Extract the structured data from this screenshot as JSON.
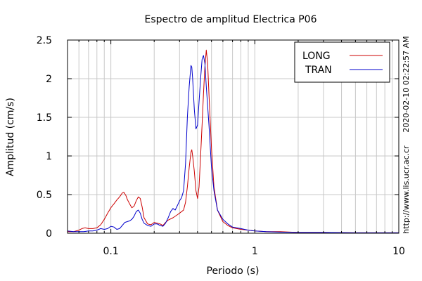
{
  "chart_data": {
    "type": "line",
    "title": "Espectro de amplitud Electrica P06",
    "xlabel": "Periodo (s)",
    "ylabel": "Amplitud (cm/s)",
    "x_scale": "log",
    "xlim": [
      0.05,
      10
    ],
    "ylim": [
      0,
      2.5
    ],
    "x_ticks": [
      {
        "value": 0.1,
        "label": "0.1"
      },
      {
        "value": 1,
        "label": "1"
      },
      {
        "value": 10,
        "label": "10"
      }
    ],
    "y_ticks": [
      {
        "value": 0,
        "label": "0"
      },
      {
        "value": 0.5,
        "label": "0.5"
      },
      {
        "value": 1,
        "label": "1"
      },
      {
        "value": 1.5,
        "label": "1.5"
      },
      {
        "value": 2,
        "label": "2"
      },
      {
        "value": 2.5,
        "label": "2.5"
      }
    ],
    "grid": true,
    "legend_position": "top-right",
    "side_labels": {
      "timestamp": "2020-02-10 02:22:57 AM",
      "url": "http://www.lis.ucr.ac.cr"
    },
    "series": [
      {
        "name": "LONG",
        "color": "#cc0000",
        "points": [
          [
            0.05,
            0.02
          ],
          [
            0.055,
            0.02
          ],
          [
            0.06,
            0.04
          ],
          [
            0.063,
            0.06
          ],
          [
            0.066,
            0.07
          ],
          [
            0.07,
            0.06
          ],
          [
            0.075,
            0.06
          ],
          [
            0.08,
            0.07
          ],
          [
            0.085,
            0.11
          ],
          [
            0.09,
            0.18
          ],
          [
            0.095,
            0.26
          ],
          [
            0.1,
            0.33
          ],
          [
            0.105,
            0.38
          ],
          [
            0.11,
            0.43
          ],
          [
            0.115,
            0.47
          ],
          [
            0.12,
            0.52
          ],
          [
            0.123,
            0.53
          ],
          [
            0.127,
            0.49
          ],
          [
            0.13,
            0.44
          ],
          [
            0.135,
            0.38
          ],
          [
            0.14,
            0.33
          ],
          [
            0.145,
            0.35
          ],
          [
            0.15,
            0.42
          ],
          [
            0.155,
            0.47
          ],
          [
            0.16,
            0.45
          ],
          [
            0.165,
            0.34
          ],
          [
            0.17,
            0.2
          ],
          [
            0.18,
            0.12
          ],
          [
            0.19,
            0.11
          ],
          [
            0.2,
            0.14
          ],
          [
            0.21,
            0.13
          ],
          [
            0.22,
            0.12
          ],
          [
            0.23,
            0.1
          ],
          [
            0.24,
            0.14
          ],
          [
            0.25,
            0.17
          ],
          [
            0.27,
            0.2
          ],
          [
            0.29,
            0.24
          ],
          [
            0.31,
            0.28
          ],
          [
            0.32,
            0.3
          ],
          [
            0.33,
            0.4
          ],
          [
            0.34,
            0.6
          ],
          [
            0.35,
            0.85
          ],
          [
            0.36,
            1.05
          ],
          [
            0.365,
            1.08
          ],
          [
            0.37,
            1.0
          ],
          [
            0.38,
            0.8
          ],
          [
            0.39,
            0.55
          ],
          [
            0.4,
            0.45
          ],
          [
            0.41,
            0.6
          ],
          [
            0.42,
            1.0
          ],
          [
            0.43,
            1.4
          ],
          [
            0.44,
            1.8
          ],
          [
            0.45,
            2.15
          ],
          [
            0.46,
            2.37
          ],
          [
            0.47,
            2.2
          ],
          [
            0.48,
            1.8
          ],
          [
            0.5,
            1.1
          ],
          [
            0.52,
            0.6
          ],
          [
            0.55,
            0.3
          ],
          [
            0.6,
            0.15
          ],
          [
            0.65,
            0.1
          ],
          [
            0.7,
            0.07
          ],
          [
            0.8,
            0.05
          ],
          [
            0.9,
            0.04
          ],
          [
            1.0,
            0.03
          ],
          [
            1.2,
            0.02
          ],
          [
            1.5,
            0.02
          ],
          [
            2,
            0.01
          ],
          [
            3,
            0.01
          ],
          [
            5,
            0.005
          ],
          [
            10,
            0.005
          ]
        ]
      },
      {
        "name": "TRAN",
        "color": "#0000cc",
        "points": [
          [
            0.05,
            0.03
          ],
          [
            0.055,
            0.02
          ],
          [
            0.06,
            0.02
          ],
          [
            0.065,
            0.02
          ],
          [
            0.07,
            0.03
          ],
          [
            0.075,
            0.03
          ],
          [
            0.08,
            0.04
          ],
          [
            0.085,
            0.06
          ],
          [
            0.09,
            0.05
          ],
          [
            0.095,
            0.06
          ],
          [
            0.1,
            0.09
          ],
          [
            0.105,
            0.08
          ],
          [
            0.11,
            0.05
          ],
          [
            0.115,
            0.06
          ],
          [
            0.12,
            0.1
          ],
          [
            0.125,
            0.14
          ],
          [
            0.13,
            0.15
          ],
          [
            0.135,
            0.16
          ],
          [
            0.14,
            0.18
          ],
          [
            0.145,
            0.22
          ],
          [
            0.15,
            0.28
          ],
          [
            0.155,
            0.3
          ],
          [
            0.16,
            0.26
          ],
          [
            0.165,
            0.18
          ],
          [
            0.17,
            0.13
          ],
          [
            0.18,
            0.1
          ],
          [
            0.19,
            0.09
          ],
          [
            0.2,
            0.12
          ],
          [
            0.21,
            0.12
          ],
          [
            0.22,
            0.1
          ],
          [
            0.23,
            0.09
          ],
          [
            0.24,
            0.13
          ],
          [
            0.25,
            0.2
          ],
          [
            0.26,
            0.28
          ],
          [
            0.27,
            0.32
          ],
          [
            0.28,
            0.3
          ],
          [
            0.29,
            0.36
          ],
          [
            0.3,
            0.42
          ],
          [
            0.31,
            0.46
          ],
          [
            0.32,
            0.55
          ],
          [
            0.33,
            0.9
          ],
          [
            0.34,
            1.5
          ],
          [
            0.35,
            1.9
          ],
          [
            0.36,
            2.17
          ],
          [
            0.365,
            2.15
          ],
          [
            0.37,
            2.0
          ],
          [
            0.38,
            1.6
          ],
          [
            0.39,
            1.35
          ],
          [
            0.4,
            1.4
          ],
          [
            0.41,
            1.7
          ],
          [
            0.42,
            2.0
          ],
          [
            0.43,
            2.25
          ],
          [
            0.44,
            2.3
          ],
          [
            0.45,
            2.2
          ],
          [
            0.46,
            1.9
          ],
          [
            0.48,
            1.4
          ],
          [
            0.5,
            0.85
          ],
          [
            0.52,
            0.55
          ],
          [
            0.55,
            0.3
          ],
          [
            0.6,
            0.18
          ],
          [
            0.65,
            0.12
          ],
          [
            0.7,
            0.08
          ],
          [
            0.8,
            0.06
          ],
          [
            0.9,
            0.04
          ],
          [
            1.0,
            0.03
          ],
          [
            1.2,
            0.02
          ],
          [
            1.5,
            0.015
          ],
          [
            2,
            0.01
          ],
          [
            3,
            0.01
          ],
          [
            5,
            0.005
          ],
          [
            10,
            0.005
          ]
        ]
      }
    ]
  }
}
